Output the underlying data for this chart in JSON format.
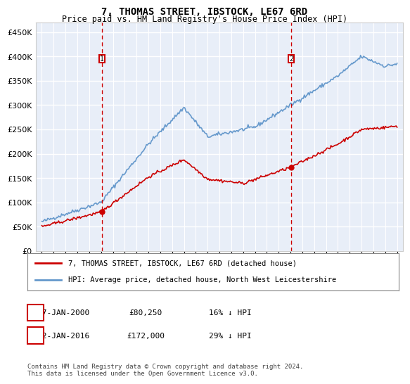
{
  "title": "7, THOMAS STREET, IBSTOCK, LE67 6RD",
  "subtitle": "Price paid vs. HM Land Registry's House Price Index (HPI)",
  "legend_line1": "7, THOMAS STREET, IBSTOCK, LE67 6RD (detached house)",
  "legend_line2": "HPI: Average price, detached house, North West Leicestershire",
  "annotation1_label": "1",
  "annotation1_date": "27-JAN-2000",
  "annotation1_price": "£80,250",
  "annotation1_hpi": "16% ↓ HPI",
  "annotation1_year": 2000.07,
  "annotation1_value": 80250,
  "annotation2_label": "2",
  "annotation2_date": "22-JAN-2016",
  "annotation2_price": "£172,000",
  "annotation2_hpi": "29% ↓ HPI",
  "annotation2_year": 2016.07,
  "annotation2_value": 172000,
  "footer": "Contains HM Land Registry data © Crown copyright and database right 2024.\nThis data is licensed under the Open Government Licence v3.0.",
  "ylim": [
    0,
    470000
  ],
  "yticks": [
    0,
    50000,
    100000,
    150000,
    200000,
    250000,
    300000,
    350000,
    400000,
    450000
  ],
  "background_color": "#e8eef8",
  "plot_bg": "#e8eef8",
  "grid_color": "#ffffff",
  "hpi_color": "#6699cc",
  "price_color": "#cc0000",
  "dashed_line_color": "#cc0000"
}
